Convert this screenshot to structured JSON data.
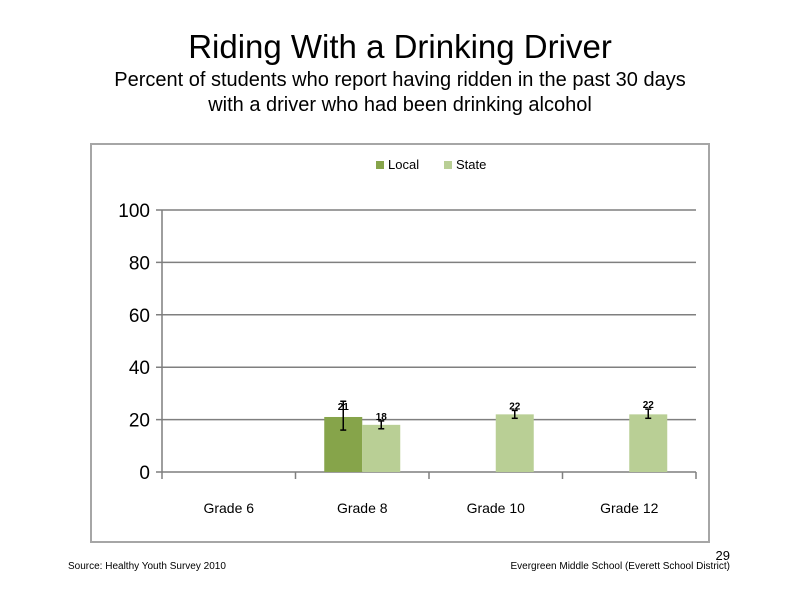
{
  "slide": {
    "title": "Riding  With a Drinking  Driver",
    "subtitle_line1": "Percent of students who report having ridden in the past 30 days",
    "subtitle_line2": "with a driver who had been drinking  alcohol",
    "source": "Source: Healthy  Youth Survey 2010",
    "school": "Evergreen Middle  School (Everett School District)",
    "page_number": "29"
  },
  "chart_data": {
    "type": "bar",
    "categories": [
      "Grade 6",
      "Grade 8",
      "Grade 10",
      "Grade 12"
    ],
    "series": [
      {
        "name": "Local",
        "color": "#86a44a",
        "values": [
          null,
          21,
          null,
          null
        ],
        "error_low": [
          null,
          16,
          null,
          null
        ],
        "error_high": [
          null,
          27,
          null,
          null
        ]
      },
      {
        "name": "State",
        "color": "#b9cf95",
        "values": [
          null,
          18,
          22,
          22
        ],
        "error_low": [
          null,
          16.5,
          20.5,
          20.5
        ],
        "error_high": [
          null,
          19.5,
          23.5,
          24
        ]
      }
    ],
    "data_labels": [
      [
        null,
        "21",
        null,
        null
      ],
      [
        null,
        "18",
        "22",
        "22"
      ]
    ],
    "yticks": [
      0,
      20,
      40,
      60,
      80,
      100
    ],
    "ylim": [
      0,
      100
    ],
    "grid": true,
    "legend": "top-center"
  }
}
